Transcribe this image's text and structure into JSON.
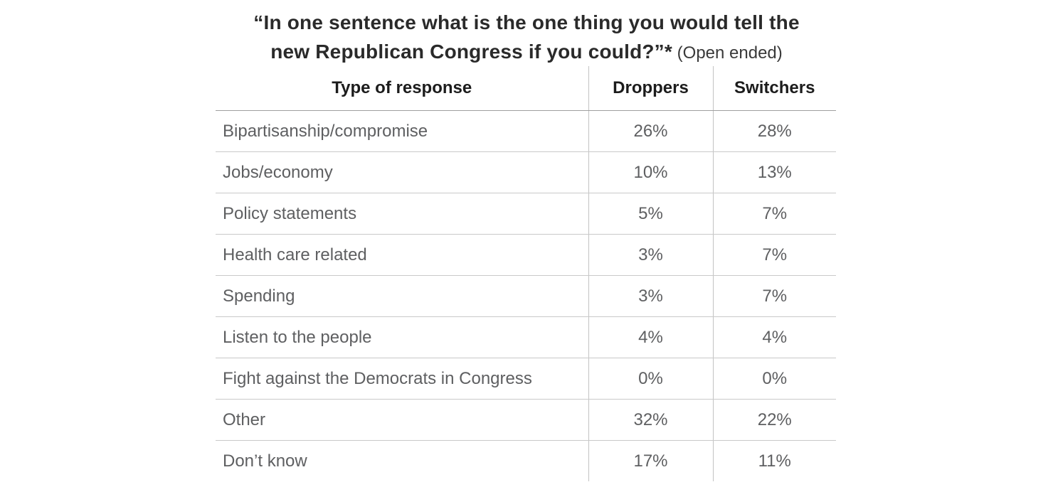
{
  "title": {
    "line1": "“In one sentence what is the one thing you would tell the",
    "line2_bold": "new Republican Congress if you could?”*",
    "line2_note": " (Open ended)"
  },
  "table": {
    "headers": [
      "Type of response",
      "Droppers",
      "Switchers"
    ],
    "rows": [
      {
        "label": "Bipartisanship/compromise",
        "droppers": "26%",
        "switchers": "28%"
      },
      {
        "label": "Jobs/economy",
        "droppers": "10%",
        "switchers": "13%"
      },
      {
        "label": "Policy statements",
        "droppers": "5%",
        "switchers": "7%"
      },
      {
        "label": "Health care related",
        "droppers": "3%",
        "switchers": "7%"
      },
      {
        "label": "Spending",
        "droppers": "3%",
        "switchers": "7%"
      },
      {
        "label": "Listen to the people",
        "droppers": "4%",
        "switchers": "4%"
      },
      {
        "label": "Fight against the Democrats in Congress",
        "droppers": "0%",
        "switchers": "0%"
      },
      {
        "label": "Other",
        "droppers": "32%",
        "switchers": "22%"
      },
      {
        "label": "Don’t know",
        "droppers": "17%",
        "switchers": "11%"
      }
    ]
  },
  "colors": {
    "title_text": "#2a2a2a",
    "header_text": "#1c1c1c",
    "body_text": "#5e5f61",
    "header_rule": "#9e9e9e",
    "row_rule": "#c9c9c9",
    "column_rule": "#c3c3c3",
    "background": "#ffffff"
  },
  "chart_data": {
    "type": "table",
    "title": "“In one sentence what is the one thing you would tell the new Republican Congress if you could?”* (Open ended)",
    "categories": [
      "Bipartisanship/compromise",
      "Jobs/economy",
      "Policy statements",
      "Health care related",
      "Spending",
      "Listen to the people",
      "Fight against the Democrats in Congress",
      "Other",
      "Don’t know"
    ],
    "series": [
      {
        "name": "Droppers",
        "values": [
          26,
          10,
          5,
          3,
          3,
          4,
          0,
          32,
          17
        ]
      },
      {
        "name": "Switchers",
        "values": [
          28,
          13,
          7,
          7,
          7,
          4,
          0,
          22,
          11
        ]
      }
    ],
    "units": "percent",
    "notes": "values shown with % sign; first column header is Type of response"
  }
}
